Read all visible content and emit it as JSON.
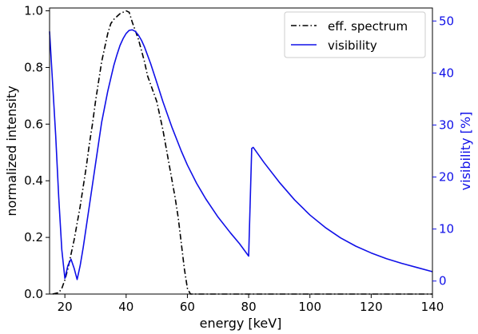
{
  "chart_data": {
    "type": "line",
    "xlabel": "energy [keV]",
    "ylabel_left": "normalized intensity",
    "ylabel_right": "visibility [%]",
    "xlim": [
      15,
      140
    ],
    "ylim_left": [
      0,
      1.01
    ],
    "ylim_right": [
      -2.5,
      52.5
    ],
    "xticks": [
      20,
      40,
      60,
      80,
      100,
      120,
      140
    ],
    "yticks_left": [
      0.0,
      0.2,
      0.4,
      0.6,
      0.8,
      1.0
    ],
    "yticks_right": [
      0,
      10,
      20,
      30,
      40,
      50
    ],
    "grid": false,
    "legend_position": "top-right",
    "colors": {
      "spectrum": "#000000",
      "visibility": "#1010e8",
      "right_axis": "#1010e8"
    },
    "series": [
      {
        "name": "eff. spectrum",
        "axis": "left",
        "style": "dash-dot",
        "x": [
          16,
          18,
          19,
          20,
          21,
          22,
          23,
          24,
          25,
          26,
          27,
          28,
          29,
          30,
          31,
          32,
          33,
          34,
          35,
          36,
          37,
          38,
          39,
          40,
          41,
          42,
          43,
          44,
          45,
          46,
          47,
          48,
          49,
          50,
          51,
          52,
          53,
          54,
          55,
          56,
          57,
          58,
          59,
          60,
          61,
          62,
          70,
          80,
          90,
          100,
          110,
          120,
          130,
          140
        ],
        "y": [
          0.0,
          0.005,
          0.02,
          0.05,
          0.09,
          0.14,
          0.19,
          0.25,
          0.31,
          0.38,
          0.45,
          0.53,
          0.6,
          0.68,
          0.75,
          0.82,
          0.87,
          0.92,
          0.955,
          0.97,
          0.98,
          0.99,
          0.995,
          1.0,
          0.995,
          0.96,
          0.93,
          0.9,
          0.86,
          0.82,
          0.77,
          0.74,
          0.71,
          0.68,
          0.63,
          0.58,
          0.52,
          0.46,
          0.4,
          0.34,
          0.27,
          0.18,
          0.09,
          0.02,
          0.0,
          0.0,
          0.0,
          0.0,
          0.0,
          0.0,
          0.0,
          0.0,
          0.0,
          0.0
        ]
      },
      {
        "name": "visibility",
        "axis": "right",
        "style": "solid",
        "x": [
          15,
          16,
          17,
          18,
          19,
          20,
          21,
          22,
          23,
          24,
          25,
          26,
          27,
          28,
          29,
          30,
          31,
          32,
          33,
          34,
          35,
          36,
          37,
          38,
          39,
          40,
          41,
          42,
          43,
          44,
          45,
          46,
          48,
          50,
          52,
          55,
          58,
          60,
          63,
          66,
          70,
          74,
          77,
          80,
          81,
          81.5,
          85,
          90,
          95,
          100,
          105,
          110,
          115,
          120,
          125,
          130,
          135,
          140
        ],
        "y": [
          48,
          38,
          28,
          16,
          6,
          0.5,
          3,
          4.2,
          2.5,
          0.3,
          3,
          6.5,
          10.5,
          14.5,
          18.5,
          22.5,
          26.5,
          30.5,
          33.5,
          36.5,
          39,
          41.5,
          43.5,
          45.3,
          46.6,
          47.6,
          48.2,
          48.3,
          48,
          47.3,
          46.3,
          45,
          41.8,
          38.2,
          34.5,
          29.5,
          25,
          22.3,
          18.8,
          15.8,
          12.3,
          9.3,
          7.2,
          4.8,
          25.5,
          25.7,
          22.8,
          19,
          15.6,
          12.7,
          10.3,
          8.3,
          6.7,
          5.4,
          4.3,
          3.4,
          2.6,
          1.8
        ]
      }
    ]
  }
}
